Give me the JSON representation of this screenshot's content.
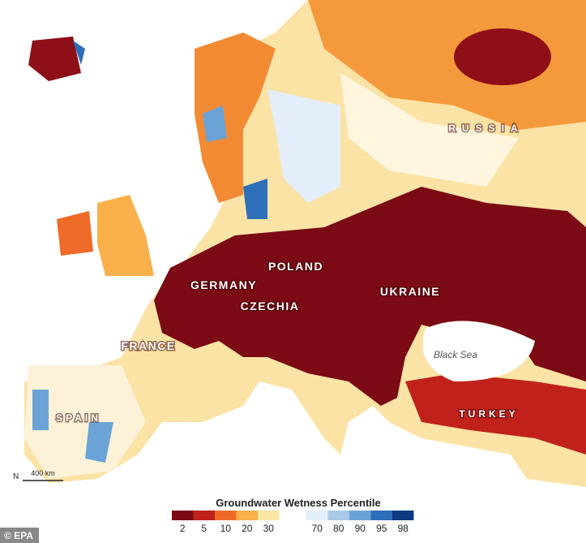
{
  "map": {
    "labels": [
      "RUSSIA",
      "POLAND",
      "GERMANY",
      "CZECHIA",
      "UKRAINE",
      "FRANCE",
      "SPAIN",
      "TURKEY"
    ],
    "sea_label": "Black Sea",
    "north": "N",
    "scale_bar": "400 km"
  },
  "legend": {
    "title": "Groundwater Wetness Percentile",
    "items": [
      {
        "value": 2,
        "color": "#7b0a14"
      },
      {
        "value": 5,
        "color": "#c0221b"
      },
      {
        "value": 10,
        "color": "#ef6b2a"
      },
      {
        "value": 20,
        "color": "#f9b04b"
      },
      {
        "value": 30,
        "color": "#fbe6a3"
      },
      {
        "value": 70,
        "color": "#e3eefa"
      },
      {
        "value": 80,
        "color": "#a9c8e8"
      },
      {
        "value": 90,
        "color": "#6ba3d6"
      },
      {
        "value": 95,
        "color": "#2d6fb8"
      },
      {
        "value": 98,
        "color": "#0d3a80"
      }
    ]
  },
  "credit": "© EPA"
}
